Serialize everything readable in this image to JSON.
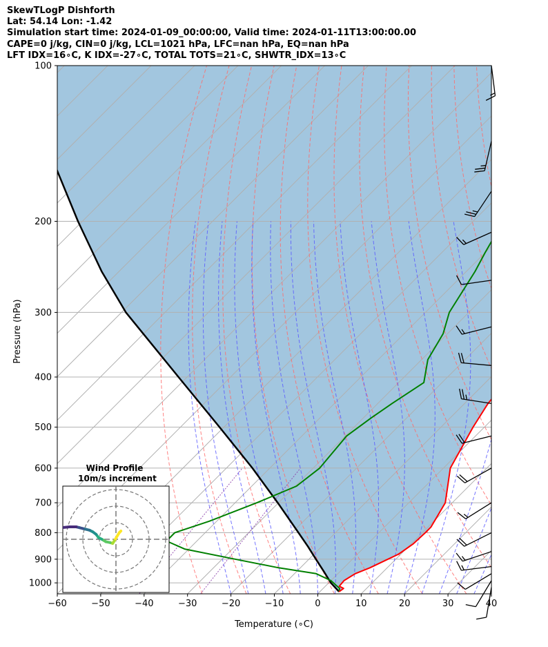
{
  "header": {
    "lines": [
      "SkewTLogP Dishforth",
      "Lat: 54.14   Lon: -1.42",
      "Simulation start time: 2024-01-09_00:00:00, Valid time: 2024-01-11T13:00:00.00",
      "CAPE=0 j/kg, CIN=0 j/kg, LCL=1021 hPa, LFC=nan hPa, EQ=nan hPa",
      "LFT IDX=16∘C, K IDX=-27∘C, TOTAL TOTS=21∘C, SHWTR_IDX=13∘C"
    ]
  },
  "chart_data": [
    {
      "type": "line",
      "subtype": "skew-t log-p diagram",
      "xlabel": "Temperature (∘C)",
      "ylabel": "Pressure (hPa)",
      "xlim": [
        -60,
        40
      ],
      "ylim": [
        1050,
        100
      ],
      "y_scale": "log",
      "x_ticks": [
        -60,
        -50,
        -40,
        -30,
        -20,
        -10,
        0,
        10,
        20,
        30,
        40
      ],
      "x_tick_labels": [
        "−60",
        "−50",
        "−40",
        "−30",
        "−20",
        "−10",
        "0",
        "10",
        "20",
        "30",
        "40"
      ],
      "y_ticks": [
        100,
        200,
        300,
        400,
        500,
        600,
        700,
        800,
        900,
        1000
      ],
      "grid": true,
      "colors": {
        "temperature": "#ff0000",
        "dewpoint": "#008000",
        "parcel": "#000000",
        "cape_fill": "#a2c6df",
        "isotherm": "#b0b0b0",
        "dry_adiabat": "#ff6b6b",
        "moist_adiabat": "#5a5aff",
        "mixing_ratio": "#8e44ad"
      },
      "series": [
        {
          "role": "temperature",
          "points": [
            [
              1040,
              4.4
            ],
            [
              1025,
              4.7
            ],
            [
              1015,
              3.2
            ],
            [
              990,
              3.0
            ],
            [
              960,
              4.0
            ],
            [
              935,
              6.0
            ],
            [
              900,
              8.2
            ],
            [
              880,
              9.5
            ],
            [
              840,
              10.5
            ],
            [
              800,
              10.7
            ],
            [
              780,
              10.7
            ],
            [
              700,
              8.4
            ],
            [
              600,
              1.6
            ],
            [
              500,
              -2.6
            ],
            [
              450,
              -4.6
            ],
            [
              400,
              -5.6
            ],
            [
              370,
              -7.7
            ],
            [
              300,
              -15.5
            ],
            [
              260,
              -22
            ],
            [
              230,
              -26
            ],
            [
              208,
              -28
            ],
            [
              200,
              -28.2
            ],
            [
              185,
              -27.5
            ],
            [
              170,
              -26.5
            ],
            [
              160,
              -26
            ],
            [
              140,
              -25.5
            ],
            [
              125,
              -25.5
            ],
            [
              110,
              -25.6
            ],
            [
              100,
              -26.3
            ]
          ]
        },
        {
          "role": "dewpoint",
          "points": [
            [
              1040,
              4.4
            ],
            [
              1025,
              3.8
            ],
            [
              990,
              0.0
            ],
            [
              960,
              -5.0
            ],
            [
              935,
              -15.0
            ],
            [
              900,
              -27.0
            ],
            [
              860,
              -41.0
            ],
            [
              830,
              -47.0
            ],
            [
              800,
              -47.0
            ],
            [
              760,
              -41.7
            ],
            [
              700,
              -35.0
            ],
            [
              650,
              -29.7
            ],
            [
              600,
              -28.5
            ],
            [
              520,
              -29.7
            ],
            [
              480,
              -28.2
            ],
            [
              450,
              -26.7
            ],
            [
              410,
              -24.2
            ],
            [
              370,
              -28.6
            ],
            [
              330,
              -31.0
            ],
            [
              300,
              -34.5
            ],
            [
              250,
              -38.0
            ],
            [
              230,
              -40.0
            ],
            [
              210,
              -42.0
            ],
            [
              195,
              -45.0
            ],
            [
              160,
              -48.0
            ],
            [
              135,
              -49.0
            ],
            [
              100,
              -50.0
            ]
          ]
        },
        {
          "role": "parcel",
          "points": [
            [
              1040,
              4.4
            ],
            [
              1000,
              0.5
            ],
            [
              950,
              -3.8
            ],
            [
              900,
              -8.4
            ],
            [
              850,
              -13.2
            ],
            [
              800,
              -18.5
            ],
            [
              700,
              -30.2
            ],
            [
              600,
              -44.0
            ],
            [
              500,
              -61.0
            ],
            [
              400,
              -82.0
            ],
            [
              300,
              -109.0
            ],
            [
              250,
              -124.0
            ],
            [
              200,
              -141.0
            ],
            [
              150,
              -162.0
            ],
            [
              100,
              -190.0
            ]
          ]
        }
      ],
      "winds": [
        {
          "p": 100,
          "u": -1,
          "v": 8
        },
        {
          "p": 140,
          "u": 3,
          "v": 13
        },
        {
          "p": 175,
          "u": 8,
          "v": 12
        },
        {
          "p": 210,
          "u": 9,
          "v": 4
        },
        {
          "p": 260,
          "u": 7,
          "v": 1
        },
        {
          "p": 320,
          "u": 8,
          "v": 2
        },
        {
          "p": 380,
          "u": 11,
          "v": -1
        },
        {
          "p": 450,
          "u": 13,
          "v": -2
        },
        {
          "p": 520,
          "u": 12,
          "v": 3
        },
        {
          "p": 600,
          "u": 9,
          "v": 5
        },
        {
          "p": 700,
          "u": 8,
          "v": 5
        },
        {
          "p": 800,
          "u": 10,
          "v": 5
        },
        {
          "p": 870,
          "u": 9,
          "v": 3
        },
        {
          "p": 930,
          "u": 8,
          "v": 1
        },
        {
          "p": 960,
          "u": 5,
          "v": 3
        },
        {
          "p": 990,
          "u": 3,
          "v": 5
        },
        {
          "p": 1020,
          "u": 1,
          "v": 6
        }
      ]
    },
    {
      "type": "line",
      "subtype": "hodograph",
      "title": "Wind Profile",
      "subtitle": "10m/s increment",
      "ring_step": 10,
      "ring_count": 3,
      "colormap": "viridis",
      "points": [
        [
          3.0,
          5.0
        ],
        [
          2.0,
          4.0
        ],
        [
          -1.0,
          -1.0
        ],
        [
          -2.0,
          -2.5
        ],
        [
          -3.5,
          -2.0
        ],
        [
          -6.0,
          -1.5
        ],
        [
          -8.5,
          0.0
        ],
        [
          -10.5,
          1.0
        ],
        [
          -12.0,
          3.0
        ],
        [
          -14.0,
          4.5
        ],
        [
          -16.0,
          5.5
        ],
        [
          -18.0,
          6.0
        ],
        [
          -20.0,
          6.5
        ],
        [
          -22.0,
          7.0
        ],
        [
          -24.0,
          7.5
        ],
        [
          -28.0,
          7.5
        ],
        [
          -33.0,
          7.0
        ],
        [
          -38.0,
          6.5
        ],
        [
          -44.0,
          6.5
        ]
      ]
    }
  ]
}
